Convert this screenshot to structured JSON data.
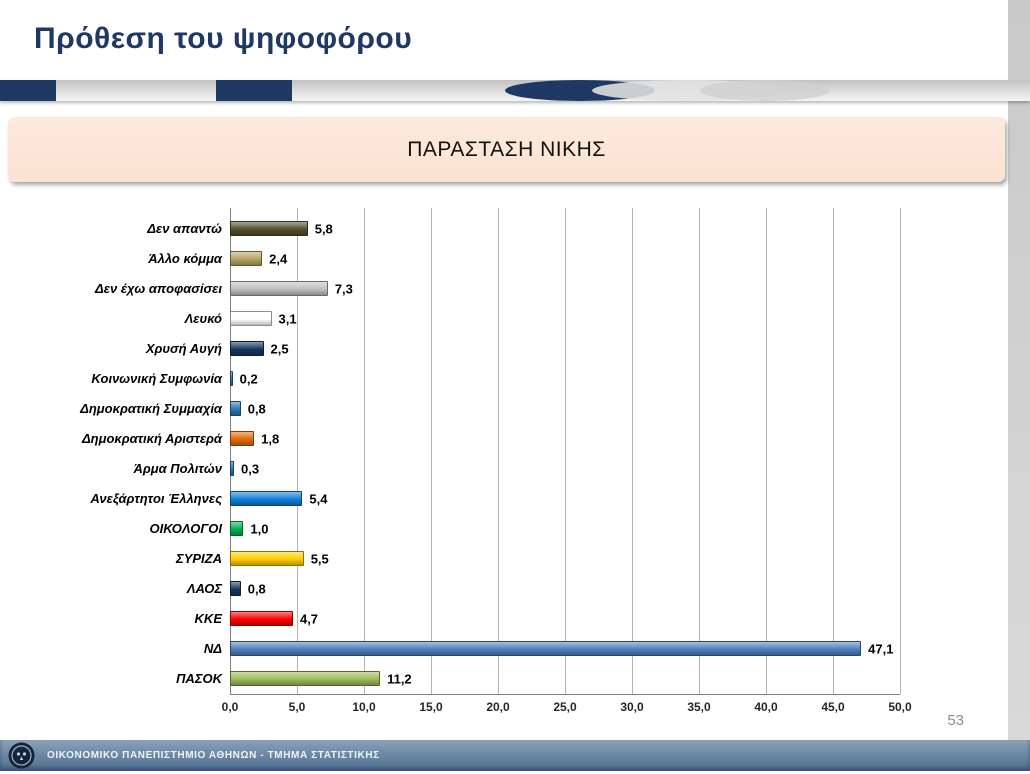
{
  "slide": {
    "title": "Πρόθεση του ψηφοφόρου",
    "subtitle": "ΠΑΡΑΣΤΑΣΗ ΝΙΚΗΣ",
    "page_number": "53",
    "footer_text": "ΟΙΚΟΝΟΜΙΚΟ ΠΑΝΕΠΙΣΤΗΜΙΟ ΑΘΗΝΩΝ - ΤΜΗΜΑ ΣΤΑΤΙΣΤΙΚΗΣ"
  },
  "colors": {
    "navy": "#1f3864",
    "subtitle_bg": "#fbe2d1",
    "footer_top": "#8ba2ba",
    "footer_bottom": "#4f6e8e",
    "grid": "#b3b3b3",
    "axis": "#808080",
    "page_number": "#8c8c8c"
  },
  "chart_data": {
    "type": "bar",
    "orientation": "horizontal",
    "title": "ΠΑΡΑΣΤΑΣΗ ΝΙΚΗΣ",
    "categories": [
      "Δεν απαντώ",
      "Άλλο κόμμα",
      "Δεν έχω αποφασίσει",
      "Λευκό",
      "Χρυσή Αυγή",
      "Κοινωνική Συμφωνία",
      "Δημοκρατική Συμμαχία",
      "Δημοκρατική Αριστερά",
      "Άρμα Πολιτών",
      "Ανεξάρτητοι Έλληνες",
      "ΟΙΚΟΛΟΓΟΙ",
      "ΣΥΡΙΖΑ",
      "ΛΑΟΣ",
      "ΚΚΕ",
      "ΝΔ",
      "ΠΑΣΟΚ"
    ],
    "values": [
      5.8,
      2.4,
      7.3,
      3.1,
      2.5,
      0.2,
      0.8,
      1.8,
      0.3,
      5.4,
      1.0,
      5.5,
      0.8,
      4.7,
      47.1,
      11.2
    ],
    "value_labels": [
      "5,8",
      "2,4",
      "7,3",
      "3,1",
      "2,5",
      "0,2",
      "0,8",
      "1,8",
      "0,3",
      "5,4",
      "1,0",
      "5,5",
      "0,8",
      "4,7",
      "47,1",
      "11,2"
    ],
    "bar_colors": [
      "#554f2d",
      "#b3a463",
      "#bfbfbf",
      "#ffffff",
      "#17375e",
      "#2e75b6",
      "#2e75b6",
      "#e36c0a",
      "#2e75b6",
      "#0e80d8",
      "#00b050",
      "#ffcc00",
      "#17375e",
      "#fe0000",
      "#4f81bd",
      "#9bbb59"
    ],
    "xlim": [
      0,
      50
    ],
    "x_tick_values": [
      0,
      5,
      10,
      15,
      20,
      25,
      30,
      35,
      40,
      45,
      50
    ],
    "x_tick_labels": [
      "0,0",
      "5,0",
      "10,0",
      "15,0",
      "20,0",
      "25,0",
      "30,0",
      "35,0",
      "40,0",
      "45,0",
      "50,0"
    ],
    "grid": true,
    "legend": "none"
  }
}
